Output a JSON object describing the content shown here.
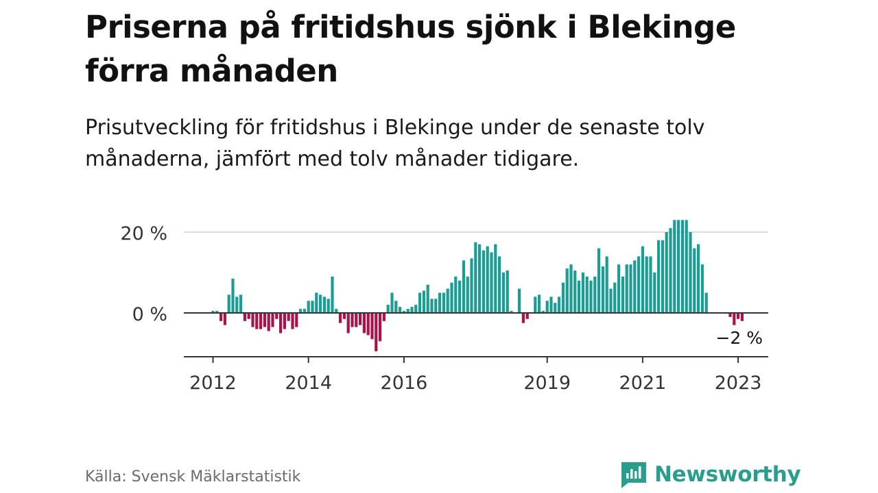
{
  "title": "Priserna på fritidshus sjönk i Blekinge förra månaden",
  "subtitle": "Prisutveckling för fritidshus i Blekinge under de senaste tolv månaderna, jämfört med tolv månader tidigare.",
  "source": "Källa: Svensk Mäklarstatistik",
  "brand": {
    "name": "Newsworthy",
    "icon": "newsworthy-logo-icon"
  },
  "colors": {
    "positive": "#1a9e94",
    "negative": "#a8144a",
    "grid": "#dddddd",
    "axis": "#333333"
  },
  "chart_data": {
    "type": "bar",
    "start": "2012-01",
    "y_ticks": [
      {
        "value": 0,
        "label": "0 %"
      },
      {
        "value": 20,
        "label": "20 %"
      }
    ],
    "ylim": [
      -10,
      22
    ],
    "grid": true,
    "x_ticks": [
      {
        "date": "2012-01",
        "label": "2012"
      },
      {
        "date": "2014-01",
        "label": "2014"
      },
      {
        "date": "2016-01",
        "label": "2016"
      },
      {
        "date": "2019-01",
        "label": "2019"
      },
      {
        "date": "2021-01",
        "label": "2021"
      },
      {
        "date": "2023-01",
        "label": "2023"
      }
    ],
    "last_label": "−2 %",
    "values": [
      0.5,
      0.5,
      -2,
      -3,
      4.5,
      8.5,
      4,
      4.5,
      -2,
      -1.5,
      -3.5,
      -4,
      -4,
      -3.5,
      -4.5,
      -3.5,
      -1.5,
      -5,
      -4,
      -2,
      -4,
      -3.5,
      1,
      1,
      3,
      3,
      5,
      4.5,
      4,
      3.5,
      9,
      1,
      -2.5,
      -1.5,
      -5,
      -3.5,
      -3.5,
      -3,
      -5,
      -5.5,
      -6.5,
      -9.5,
      -7,
      -2,
      2,
      5,
      3,
      1.5,
      0.5,
      1,
      1.5,
      2,
      5,
      5.5,
      7,
      3.5,
      3.5,
      5,
      5,
      6,
      7.5,
      9,
      8,
      13,
      9,
      13.5,
      17.5,
      17,
      15.5,
      16.5,
      15,
      17,
      14,
      10,
      10.5,
      0.5,
      0,
      6,
      -2.5,
      -1.5,
      0,
      4,
      4.5,
      0.5,
      3,
      4,
      2.5,
      4,
      7.5,
      11,
      12,
      10.5,
      8,
      10,
      9,
      8,
      9,
      16,
      11.5,
      14,
      6,
      7.5,
      12,
      9,
      12,
      12,
      13,
      14,
      16.5,
      14,
      14,
      10,
      18,
      18,
      20,
      21,
      23,
      23,
      23,
      23,
      20,
      16,
      17,
      12,
      5,
      0,
      0,
      0,
      0,
      0,
      -1,
      -3,
      -1.5,
      -2
    ]
  }
}
